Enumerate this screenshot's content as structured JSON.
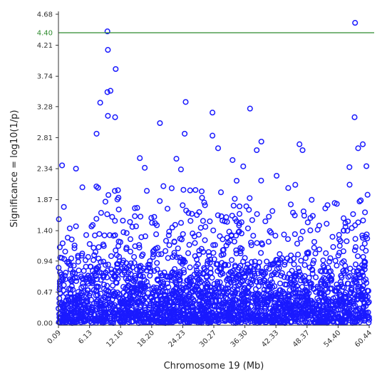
{
  "chart_data": {
    "type": "scatter",
    "title": "",
    "xlabel": "Chromosome 19 (Mb)",
    "ylabel": "Significance = log10(1/p)",
    "xlim": [
      0.09,
      60.44
    ],
    "ylim": [
      0,
      4.68
    ],
    "x_ticks": [
      0.09,
      6.13,
      12.16,
      18.2,
      24.23,
      30.27,
      36.3,
      42.33,
      48.37,
      54.4,
      60.44
    ],
    "x_tick_labels": [
      "0.09",
      "6.13",
      "12.16",
      "18.20",
      "24.23",
      "30.27",
      "36.30",
      "42.33",
      "48.37",
      "54.40",
      "60.44"
    ],
    "y_ticks": [
      0.0,
      0.47,
      0.94,
      1.4,
      1.87,
      2.34,
      2.81,
      3.28,
      3.74,
      4.21,
      4.68
    ],
    "y_tick_labels": [
      "0.00",
      "0.47",
      "0.94",
      "1.40",
      "1.87",
      "2.34",
      "2.81",
      "3.28",
      "3.74",
      "4.21",
      "4.68"
    ],
    "threshold": {
      "value": 4.4,
      "label": "4.40",
      "color": "#2e8b2e"
    },
    "marker": {
      "shape": "open-circle",
      "color": "#1a1aff"
    },
    "grid": false,
    "legend": "none",
    "notable_points": [
      {
        "x": 9.6,
        "y": 4.42
      },
      {
        "x": 9.7,
        "y": 4.14
      },
      {
        "x": 11.2,
        "y": 3.85
      },
      {
        "x": 10.2,
        "y": 3.52
      },
      {
        "x": 9.6,
        "y": 3.5
      },
      {
        "x": 8.2,
        "y": 3.34
      },
      {
        "x": 9.7,
        "y": 3.14
      },
      {
        "x": 11.1,
        "y": 3.12
      },
      {
        "x": 24.8,
        "y": 3.35
      },
      {
        "x": 19.8,
        "y": 3.03
      },
      {
        "x": 24.6,
        "y": 2.87
      },
      {
        "x": 30.0,
        "y": 3.19
      },
      {
        "x": 37.3,
        "y": 3.25
      },
      {
        "x": 57.7,
        "y": 4.55
      },
      {
        "x": 57.6,
        "y": 3.12
      },
      {
        "x": 30.0,
        "y": 2.84
      },
      {
        "x": 7.5,
        "y": 2.87
      },
      {
        "x": 39.5,
        "y": 2.75
      },
      {
        "x": 46.9,
        "y": 2.71
      },
      {
        "x": 59.2,
        "y": 2.71
      },
      {
        "x": 58.3,
        "y": 2.65
      },
      {
        "x": 31.1,
        "y": 2.65
      },
      {
        "x": 38.6,
        "y": 2.62
      },
      {
        "x": 47.5,
        "y": 2.62
      },
      {
        "x": 0.8,
        "y": 2.39
      },
      {
        "x": 3.5,
        "y": 2.34
      },
      {
        "x": 15.9,
        "y": 2.5
      },
      {
        "x": 23.0,
        "y": 2.49
      },
      {
        "x": 33.9,
        "y": 2.47
      }
    ],
    "background_points_note": ""
  }
}
